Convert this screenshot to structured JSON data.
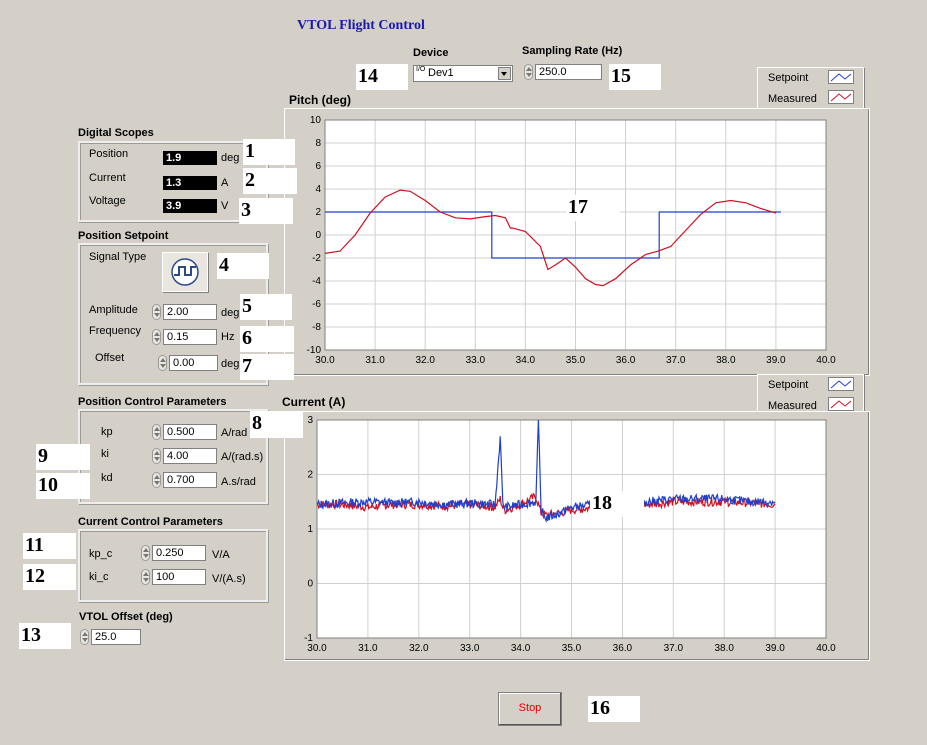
{
  "app": {
    "title": "VTOL Flight Control"
  },
  "device": {
    "label": "Device",
    "prefix": "I/O",
    "value": "Dev1"
  },
  "sampling": {
    "label": "Sampling Rate (Hz)",
    "value": "250.0"
  },
  "scopes": {
    "title": "Digital Scopes",
    "items": [
      {
        "label": "Position",
        "value": "1.9",
        "unit": "deg"
      },
      {
        "label": "Current",
        "value": "1.3",
        "unit": "A"
      },
      {
        "label": "Voltage",
        "value": "3.9",
        "unit": "V"
      }
    ]
  },
  "setpoint": {
    "title": "Position Setpoint",
    "signal_type_label": "Signal Type",
    "signal_icon": "square-wave-icon",
    "amplitude": {
      "label": "Amplitude",
      "value": "2.00",
      "unit": "deg"
    },
    "frequency": {
      "label": "Frequency",
      "value": "0.15",
      "unit": "Hz"
    },
    "offset": {
      "label": "Offset",
      "value": "0.00",
      "unit": "deg"
    }
  },
  "position_control": {
    "title": "Position Control Parameters",
    "params": [
      {
        "label": "kp",
        "value": "0.500",
        "unit": "A/rad"
      },
      {
        "label": "ki",
        "value": "4.00",
        "unit": "A/(rad.s)"
      },
      {
        "label": "kd",
        "value": "0.700",
        "unit": "A.s/rad"
      }
    ]
  },
  "current_control": {
    "title": "Current Control Parameters",
    "params": [
      {
        "label": "kp_c",
        "value": "0.250",
        "unit": "V/A"
      },
      {
        "label": "ki_c",
        "value": "100",
        "unit": "V/(A.s)"
      }
    ]
  },
  "vtol_offset": {
    "label": "VTOL Offset (deg)",
    "value": "25.0"
  },
  "stop": {
    "label": "Stop"
  },
  "callouts": [
    "1",
    "2",
    "3",
    "4",
    "5",
    "6",
    "7",
    "8",
    "9",
    "10",
    "11",
    "12",
    "13",
    "14",
    "15",
    "16",
    "17",
    "18"
  ],
  "colors": {
    "setpoint": "#1f3fd0",
    "measured": "#d01020",
    "background": "#d4d0c8"
  },
  "chart_data": [
    {
      "type": "line",
      "title": "Pitch (deg)",
      "xlim": [
        30.0,
        40.0
      ],
      "ylim": [
        -10,
        10
      ],
      "xticks": [
        "30.0",
        "31.0",
        "32.0",
        "33.0",
        "34.0",
        "35.0",
        "36.0",
        "37.0",
        "38.0",
        "39.0",
        "40.0"
      ],
      "yticks": [
        "10",
        "8",
        "6",
        "4",
        "2",
        "0",
        "-2",
        "-4",
        "-6",
        "-8",
        "-10"
      ],
      "grid": true,
      "legend": {
        "placement": "top-right",
        "entries": [
          "Setpoint",
          "Measured"
        ]
      },
      "series": [
        {
          "name": "Setpoint",
          "color": "#1f3fd0",
          "x": [
            30.0,
            33.33,
            33.33,
            36.67,
            36.67,
            39.1
          ],
          "y": [
            2,
            2,
            -2,
            -2,
            2,
            2
          ]
        },
        {
          "name": "Measured",
          "color": "#d01020",
          "x": [
            30.0,
            30.3,
            30.6,
            30.9,
            31.2,
            31.5,
            31.7,
            32.0,
            32.3,
            32.6,
            32.9,
            33.2,
            33.4,
            33.6,
            33.7,
            33.75,
            34.0,
            34.3,
            34.45,
            34.6,
            34.8,
            35.0,
            35.2,
            35.4,
            35.55,
            35.8,
            36.1,
            36.4,
            36.65,
            36.9,
            37.2,
            37.5,
            37.8,
            38.1,
            38.4,
            38.7,
            39.0
          ],
          "y": [
            -1.6,
            -1.4,
            0.0,
            1.9,
            3.3,
            3.9,
            3.8,
            3.0,
            2.0,
            1.5,
            1.4,
            1.6,
            1.7,
            1.5,
            0.6,
            0.6,
            0.3,
            -1.0,
            -3.0,
            -2.6,
            -2.0,
            -2.8,
            -3.8,
            -4.3,
            -4.4,
            -3.8,
            -2.6,
            -1.7,
            -1.4,
            -1.0,
            0.4,
            1.8,
            2.8,
            3.0,
            2.8,
            2.3,
            1.9
          ]
        }
      ]
    },
    {
      "type": "line",
      "title": "Current (A)",
      "xlim": [
        30.0,
        40.0
      ],
      "ylim": [
        -1,
        3
      ],
      "xticks": [
        "30.0",
        "31.0",
        "32.0",
        "33.0",
        "34.0",
        "35.0",
        "36.0",
        "37.0",
        "38.0",
        "39.0",
        "40.0"
      ],
      "yticks": [
        "3",
        "2",
        "1",
        "0",
        "-1"
      ],
      "grid": true,
      "legend": {
        "placement": "top-right",
        "entries": [
          "Setpoint",
          "Measured"
        ]
      },
      "series": [
        {
          "name": "Measured",
          "color": "#d01020",
          "x": [
            30.0,
            30.5,
            31.0,
            31.5,
            32.0,
            32.5,
            33.0,
            33.5,
            33.6,
            33.65,
            33.7,
            34.0,
            34.3,
            34.35,
            34.4,
            34.5,
            34.8,
            35.0,
            35.5,
            36.0,
            36.5,
            37.0,
            37.5,
            38.0,
            38.5,
            39.0
          ],
          "y": [
            1.45,
            1.45,
            1.4,
            1.45,
            1.45,
            1.42,
            1.45,
            1.4,
            1.55,
            1.4,
            1.35,
            1.45,
            1.6,
            1.45,
            1.3,
            1.25,
            1.3,
            1.35,
            1.4,
            1.42,
            1.45,
            1.5,
            1.5,
            1.5,
            1.48,
            1.45
          ]
        },
        {
          "name": "Setpoint",
          "color": "#1f3fd0",
          "x": [
            30.0,
            30.5,
            31.0,
            31.5,
            32.0,
            32.5,
            33.0,
            33.5,
            33.6,
            33.65,
            33.7,
            34.0,
            34.3,
            34.35,
            34.4,
            34.5,
            34.8,
            35.0,
            35.5,
            36.0,
            36.5,
            37.0,
            37.5,
            38.0,
            38.5,
            39.0
          ],
          "y": [
            1.45,
            1.48,
            1.5,
            1.48,
            1.5,
            1.45,
            1.47,
            1.45,
            2.7,
            1.45,
            1.4,
            1.45,
            1.5,
            3.0,
            1.35,
            1.2,
            1.3,
            1.4,
            1.45,
            1.45,
            1.5,
            1.55,
            1.55,
            1.55,
            1.5,
            1.5
          ]
        }
      ]
    }
  ]
}
